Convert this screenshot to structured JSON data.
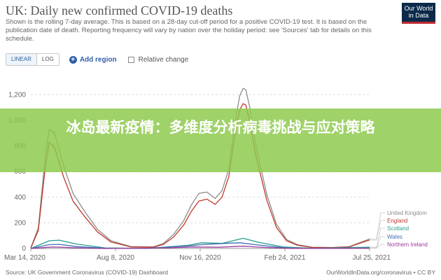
{
  "header": {
    "title": "UK: Daily new confirmed COVID-19 deaths",
    "subtitle": "Shown is the rolling 7-day average. This is based on a 28-day cut-off period for a positive COVID-19 test. It is based on the publication date of death. Reporting frequency will vary by nation over the holiday period: see 'Sources' tab for details on this schedule.",
    "logo_line1": "Our World",
    "logo_line2": "in Data"
  },
  "controls": {
    "linear_label": "LINEAR",
    "log_label": "LOG",
    "add_region_icon": "plus-circle-icon",
    "add_region_label": "Add region",
    "relative_change_label": "Relative change"
  },
  "footer": {
    "source": "Source: UK Government Coronavirus (COVID-19) Dashboard",
    "license": "OurWorldInData.org/coronavirus • CC BY"
  },
  "banner": {
    "text": "冰岛最新疫情：多维度分析病毒挑战与应对策略"
  },
  "chart_data": {
    "type": "line",
    "title": "UK: Daily new confirmed COVID-19 deaths",
    "xlabel": "",
    "ylabel": "",
    "x_range": [
      "2020-03-14",
      "2021-07-25"
    ],
    "ylim": [
      0,
      1300
    ],
    "y_ticks": [
      0,
      200,
      400,
      600,
      800,
      1000,
      1200
    ],
    "y_tick_labels": [
      "0",
      "200",
      "400",
      "600",
      "800",
      "1,000",
      "1,200"
    ],
    "x_tick_labels": [
      "Mar 14, 2020",
      "Aug 8, 2020",
      "Nov 16, 2020",
      "Feb 24, 2021",
      "Jul 25, 2021"
    ],
    "grid": true,
    "legend_placement": "right",
    "series": [
      {
        "name": "United Kingdom",
        "color": "#8c8c8c",
        "x": [
          "2020-03-14",
          "2020-03-25",
          "2020-04-04",
          "2020-04-10",
          "2020-04-18",
          "2020-05-01",
          "2020-05-15",
          "2020-06-01",
          "2020-06-20",
          "2020-07-10",
          "2020-08-08",
          "2020-09-10",
          "2020-09-25",
          "2020-10-10",
          "2020-10-25",
          "2020-11-05",
          "2020-11-16",
          "2020-11-28",
          "2020-12-10",
          "2020-12-20",
          "2020-12-30",
          "2021-01-08",
          "2021-01-15",
          "2021-01-20",
          "2021-01-24",
          "2021-01-30",
          "2021-02-08",
          "2021-02-24",
          "2021-03-10",
          "2021-03-25",
          "2021-04-10",
          "2021-05-01",
          "2021-06-01",
          "2021-06-25",
          "2021-07-10",
          "2021-07-25"
        ],
        "values": [
          5,
          160,
          700,
          930,
          900,
          650,
          430,
          290,
          150,
          60,
          15,
          12,
          40,
          110,
          220,
          340,
          430,
          440,
          390,
          450,
          620,
          980,
          1190,
          1250,
          1240,
          1100,
          800,
          420,
          190,
          70,
          30,
          10,
          8,
          14,
          45,
          75
        ]
      },
      {
        "name": "England",
        "color": "#c0392b",
        "x": [
          "2020-03-14",
          "2020-03-25",
          "2020-04-04",
          "2020-04-10",
          "2020-04-18",
          "2020-05-01",
          "2020-05-15",
          "2020-06-01",
          "2020-06-20",
          "2020-07-10",
          "2020-08-08",
          "2020-09-10",
          "2020-09-25",
          "2020-10-10",
          "2020-10-25",
          "2020-11-05",
          "2020-11-16",
          "2020-11-28",
          "2020-12-10",
          "2020-12-20",
          "2020-12-30",
          "2021-01-08",
          "2021-01-15",
          "2021-01-20",
          "2021-01-24",
          "2021-01-30",
          "2021-02-08",
          "2021-02-24",
          "2021-03-10",
          "2021-03-25",
          "2021-04-10",
          "2021-05-01",
          "2021-06-01",
          "2021-06-25",
          "2021-07-10",
          "2021-07-25"
        ],
        "values": [
          4,
          140,
          620,
          830,
          790,
          560,
          370,
          250,
          130,
          50,
          12,
          10,
          32,
          90,
          185,
          290,
          370,
          385,
          345,
          400,
          560,
          890,
          1080,
          1130,
          1120,
          990,
          720,
          375,
          165,
          60,
          25,
          8,
          7,
          12,
          40,
          66
        ]
      },
      {
        "name": "Scotland",
        "color": "#2a9d8f",
        "x": [
          "2020-03-14",
          "2020-04-10",
          "2020-04-25",
          "2020-05-20",
          "2020-07-01",
          "2020-09-01",
          "2020-11-01",
          "2020-11-20",
          "2020-12-20",
          "2021-01-20",
          "2021-02-10",
          "2021-03-20",
          "2021-05-01",
          "2021-07-25"
        ],
        "values": [
          0,
          60,
          65,
          35,
          5,
          1,
          25,
          45,
          40,
          80,
          50,
          12,
          2,
          10
        ]
      },
      {
        "name": "Wales",
        "color": "#3f6fb5",
        "x": [
          "2020-03-14",
          "2020-04-10",
          "2020-04-25",
          "2020-05-20",
          "2020-07-01",
          "2020-09-01",
          "2020-11-01",
          "2020-11-20",
          "2020-12-25",
          "2021-01-15",
          "2021-02-10",
          "2021-03-20",
          "2021-05-01",
          "2021-07-25"
        ],
        "values": [
          0,
          30,
          32,
          15,
          3,
          1,
          20,
          30,
          40,
          45,
          28,
          6,
          1,
          4
        ]
      },
      {
        "name": "Northern Ireland",
        "color": "#9b3c9b",
        "x": [
          "2020-03-14",
          "2020-04-15",
          "2020-05-15",
          "2020-07-01",
          "2020-10-01",
          "2020-11-10",
          "2020-12-15",
          "2021-01-20",
          "2021-02-20",
          "2021-04-01",
          "2021-07-25"
        ],
        "values": [
          0,
          12,
          6,
          0,
          5,
          12,
          10,
          18,
          8,
          1,
          2
        ]
      }
    ]
  }
}
